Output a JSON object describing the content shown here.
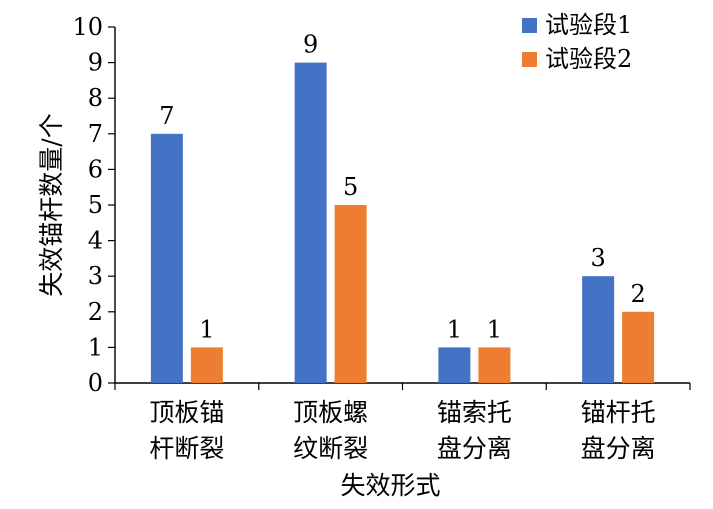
{
  "chart_data": {
    "type": "bar",
    "ylabel": "失效锚杆数量/个",
    "xlabel": "失效形式",
    "ylim": [
      0,
      10
    ],
    "yticks": [
      0,
      1,
      2,
      3,
      4,
      5,
      6,
      7,
      8,
      9,
      10
    ],
    "grid": false,
    "legend_position": "top-right",
    "categories": [
      [
        "顶板锚",
        "杆断裂"
      ],
      [
        "顶板螺",
        "纹断裂"
      ],
      [
        "锚索托",
        "盘分离"
      ],
      [
        "锚杆托",
        "盘分离"
      ]
    ],
    "series": [
      {
        "name": "试验段1",
        "values": [
          7,
          9,
          1,
          3
        ],
        "color": "#4472C4"
      },
      {
        "name": "试验段2",
        "values": [
          1,
          5,
          1,
          2
        ],
        "color": "#ED7D31"
      }
    ]
  }
}
